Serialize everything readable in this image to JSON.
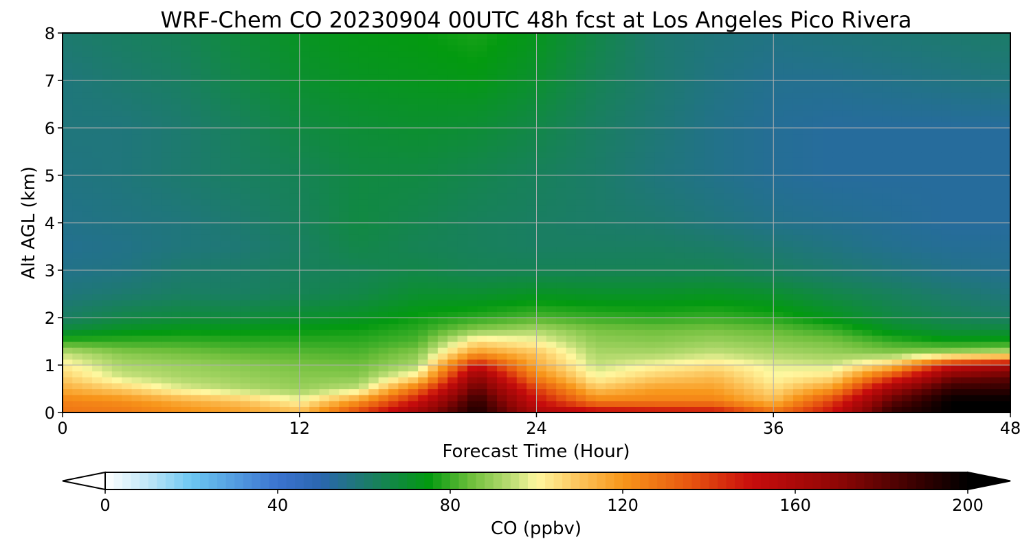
{
  "chart_data": {
    "type": "heatmap",
    "title": "WRF-Chem CO  20230904 00UTC 48h fcst at Los Angeles Pico Rivera",
    "xlabel": "Forecast Time (Hour)",
    "ylabel": "Alt AGL (km)",
    "xlim": [
      0,
      48
    ],
    "ylim": [
      0,
      8
    ],
    "x_ticks": [
      0,
      12,
      24,
      36,
      48
    ],
    "x_tick_labels": [
      "0",
      "12",
      "24",
      "36",
      "48"
    ],
    "y_ticks": [
      0,
      1,
      2,
      3,
      4,
      5,
      6,
      7,
      8
    ],
    "y_tick_labels": [
      "0",
      "1",
      "2",
      "3",
      "4",
      "5",
      "6",
      "7",
      "8"
    ],
    "grid": true,
    "x_hours": [
      0,
      3,
      6,
      9,
      12,
      15,
      18,
      21,
      24,
      27,
      30,
      33,
      36,
      39,
      42,
      45,
      48
    ],
    "z_km": [
      0,
      0.25,
      0.5,
      0.75,
      1.0,
      1.25,
      1.5,
      1.75,
      2.0,
      2.5,
      3.0,
      3.5,
      4.0,
      5.0,
      6.0,
      7.0,
      8.0
    ],
    "values_ppbv": [
      [
        128,
        127,
        122,
        118,
        112,
        140,
        165,
        195,
        160,
        155,
        152,
        150,
        130,
        150,
        190,
        200,
        200
      ],
      [
        125,
        122,
        115,
        110,
        100,
        120,
        150,
        190,
        150,
        125,
        125,
        125,
        112,
        140,
        180,
        200,
        200
      ],
      [
        115,
        108,
        98,
        93,
        90,
        95,
        130,
        180,
        140,
        110,
        118,
        118,
        105,
        120,
        165,
        190,
        190
      ],
      [
        108,
        96,
        92,
        90,
        88,
        88,
        105,
        170,
        125,
        100,
        108,
        112,
        100,
        105,
        140,
        175,
        180
      ],
      [
        102,
        92,
        90,
        88,
        86,
        85,
        92,
        150,
        115,
        95,
        100,
        104,
        98,
        96,
        110,
        150,
        160
      ],
      [
        95,
        88,
        86,
        84,
        83,
        82,
        88,
        120,
        110,
        92,
        92,
        95,
        92,
        90,
        88,
        92,
        96
      ],
      [
        80,
        80,
        80,
        79,
        79,
        79,
        82,
        105,
        100,
        89,
        88,
        90,
        88,
        86,
        80,
        76,
        76
      ],
      [
        68,
        72,
        74,
        74,
        75,
        76,
        79,
        88,
        92,
        86,
        85,
        86,
        84,
        80,
        72,
        68,
        68
      ],
      [
        62,
        66,
        68,
        68,
        70,
        72,
        76,
        79,
        82,
        80,
        79,
        80,
        78,
        73,
        67,
        64,
        62
      ],
      [
        58,
        60,
        62,
        62,
        64,
        66,
        70,
        70,
        72,
        71,
        71,
        72,
        70,
        66,
        63,
        60,
        58
      ],
      [
        56,
        57,
        60,
        61,
        63,
        64,
        66,
        64,
        64,
        64,
        64,
        64,
        62,
        60,
        58,
        56,
        55
      ],
      [
        55,
        56,
        58,
        59,
        62,
        66,
        64,
        63,
        62,
        62,
        62,
        61,
        59,
        57,
        55,
        54,
        54
      ],
      [
        56,
        57,
        58,
        60,
        63,
        67,
        65,
        63,
        62,
        61,
        60,
        58,
        56,
        55,
        54,
        53,
        53
      ],
      [
        57,
        58,
        60,
        62,
        64,
        67,
        67,
        65,
        63,
        61,
        58,
        56,
        54,
        53,
        53,
        53,
        53
      ],
      [
        58,
        58,
        60,
        63,
        67,
        69,
        70,
        69,
        66,
        62,
        59,
        56,
        54,
        53,
        53,
        53,
        53
      ],
      [
        58,
        60,
        62,
        66,
        70,
        72,
        73,
        74,
        70,
        64,
        60,
        57,
        55,
        55,
        56,
        57,
        58
      ],
      [
        60,
        62,
        64,
        68,
        72,
        74,
        75,
        77,
        73,
        66,
        60,
        58,
        57,
        58,
        59,
        60,
        61
      ]
    ],
    "colorbar": {
      "label": "CO  (ppbv)",
      "min": 0,
      "max": 200,
      "extend": "both",
      "ticks": [
        0,
        40,
        80,
        120,
        160,
        200
      ],
      "tick_labels": [
        "0",
        "40",
        "80",
        "120",
        "160",
        "200"
      ],
      "stops": [
        [
          0,
          "#ffffff"
        ],
        [
          10,
          "#bfe6f8"
        ],
        [
          20,
          "#6cc7f2"
        ],
        [
          40,
          "#3b73cf"
        ],
        [
          50,
          "#2a66b0"
        ],
        [
          60,
          "#1d7a6e"
        ],
        [
          75,
          "#039a10"
        ],
        [
          85,
          "#6fbf3c"
        ],
        [
          95,
          "#c4e07a"
        ],
        [
          100,
          "#fff8a0"
        ],
        [
          110,
          "#fcc35a"
        ],
        [
          120,
          "#f8961a"
        ],
        [
          135,
          "#e85810"
        ],
        [
          150,
          "#c80c0c"
        ],
        [
          170,
          "#8e0605"
        ],
        [
          190,
          "#300000"
        ],
        [
          200,
          "#000000"
        ]
      ]
    }
  }
}
